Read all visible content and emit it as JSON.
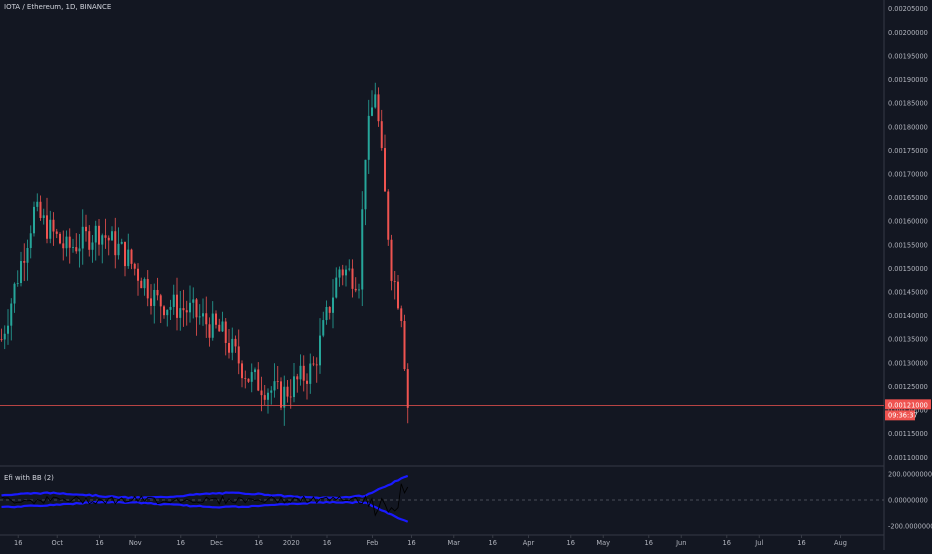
{
  "chart_title": "IOTA / Ethereum, 1D, BINANCE",
  "indicator_label": "Efi with BB",
  "indicator_param": "(2)",
  "price_tag": "0.00121000",
  "countdown_tag": "09:36:37",
  "colors": {
    "background": "#131722",
    "up": "#26a69a",
    "down": "#ef5350",
    "band": "#1a1aff",
    "efi": "#000000",
    "price_line": "#ef5350",
    "axis_text": "#b2b5be"
  },
  "chart_data": [
    {
      "type": "candlestick",
      "title": "IOTA / Ethereum, 1D, BINANCE",
      "ylim": [
        0.00109,
        0.00206
      ],
      "y_ticks": [
        "0.00205000",
        "0.00200000",
        "0.00195000",
        "0.00190000",
        "0.00185000",
        "0.00180000",
        "0.00175000",
        "0.00170000",
        "0.00165000",
        "0.00160000",
        "0.00155000",
        "0.00150000",
        "0.00145000",
        "0.00140000",
        "0.00135000",
        "0.00130000",
        "0.00125000",
        "0.00120000",
        "0.00115000",
        "0.00110000"
      ],
      "x_ticks": [
        "16",
        "Oct",
        "16",
        "Nov",
        "16",
        "Dec",
        "16",
        "2020",
        "16",
        "Feb",
        "16",
        "Mar",
        "16",
        "Apr",
        "16",
        "May",
        "16",
        "Jun",
        "16",
        "Jul",
        "16",
        "Aug"
      ],
      "last_price": 0.00121,
      "close_trend": [
        {
          "day": 0,
          "close": 0.00135
        },
        {
          "day": 10,
          "close": 0.00162
        },
        {
          "day": 20,
          "close": 0.00154
        },
        {
          "day": 30,
          "close": 0.00158
        },
        {
          "day": 38,
          "close": 0.00153
        },
        {
          "day": 48,
          "close": 0.00143
        },
        {
          "day": 58,
          "close": 0.00141
        },
        {
          "day": 68,
          "close": 0.00136
        },
        {
          "day": 76,
          "close": 0.00127
        },
        {
          "day": 86,
          "close": 0.00123
        },
        {
          "day": 96,
          "close": 0.00129
        },
        {
          "day": 104,
          "close": 0.0015
        },
        {
          "day": 110,
          "close": 0.00148
        },
        {
          "day": 112,
          "close": 0.00175
        },
        {
          "day": 115,
          "close": 0.00188
        },
        {
          "day": 120,
          "close": 0.0015
        },
        {
          "day": 123,
          "close": 0.00141
        },
        {
          "day": 125,
          "close": 0.00121
        }
      ]
    },
    {
      "type": "line",
      "title": "Efi with BB",
      "ylim": [
        -230,
        230
      ],
      "y_ticks": [
        "200.00000000",
        "0.00000000",
        "-200.00000000"
      ],
      "series": []
    }
  ]
}
